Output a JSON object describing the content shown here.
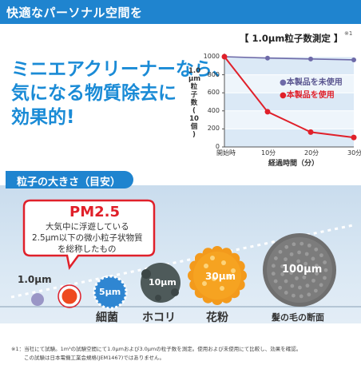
{
  "header": {
    "title": "快適なパーソナル空間を"
  },
  "headline": {
    "line1": "ミニエアクリーナーなら、",
    "line2": "気になる物質除去に",
    "line3": "効果的!"
  },
  "chart": {
    "title": "【 1.0μm粒子数測定 】",
    "note": "※1",
    "ylabel_lines": [
      "1.0",
      "μm",
      "粒",
      "子",
      "数",
      "(",
      "10",
      "個",
      ")"
    ],
    "xlabel": "経過時間（分）",
    "legend": [
      "本製品を未使用",
      "本製品を使用"
    ]
  },
  "chart_data": {
    "type": "line",
    "x": [
      "開始時",
      "10分",
      "20分",
      "30分"
    ],
    "yticks": [
      "0",
      "200",
      "400",
      "600",
      "800",
      "1000"
    ],
    "ylim": [
      0,
      1000
    ],
    "grid": true,
    "legend_position": "right",
    "series": [
      {
        "name": "本製品を未使用",
        "color": "#6e6aa8",
        "values": [
          1000,
          985,
          975,
          965
        ]
      },
      {
        "name": "本製品を使用",
        "color": "#e0202a",
        "values": [
          1000,
          390,
          165,
          105
        ]
      }
    ]
  },
  "particles": {
    "section_title": "粒子の大きさ（目安）",
    "pm_title": "PM2.5",
    "pm_desc": [
      "大気中に浮遊している",
      "2.5μm以下の微小粒子状物質",
      "を総称したもの"
    ],
    "size_1um": "1.0μm",
    "size_5um": "5μm",
    "size_10um": "10μm",
    "size_30um": "30μm",
    "size_100um": "100μm",
    "name_bacteria": "細菌",
    "name_dust": "ホコリ",
    "name_pollen": "花粉",
    "name_hair": "髪の毛の断面"
  },
  "footnote": {
    "line1": "※1：当社にて試験。1m³の試験空間にて1.0μmおよび3.0μmの粒子数を測定。使用および未使用にて比較し、効果を確認。",
    "line2": "この試験は日本電機工業会規格(JEM1467)ではありません。"
  },
  "colors": {
    "brand_blue": "#1f84cf",
    "accent_red": "#e0202a",
    "purple": "#6e6aa8"
  }
}
